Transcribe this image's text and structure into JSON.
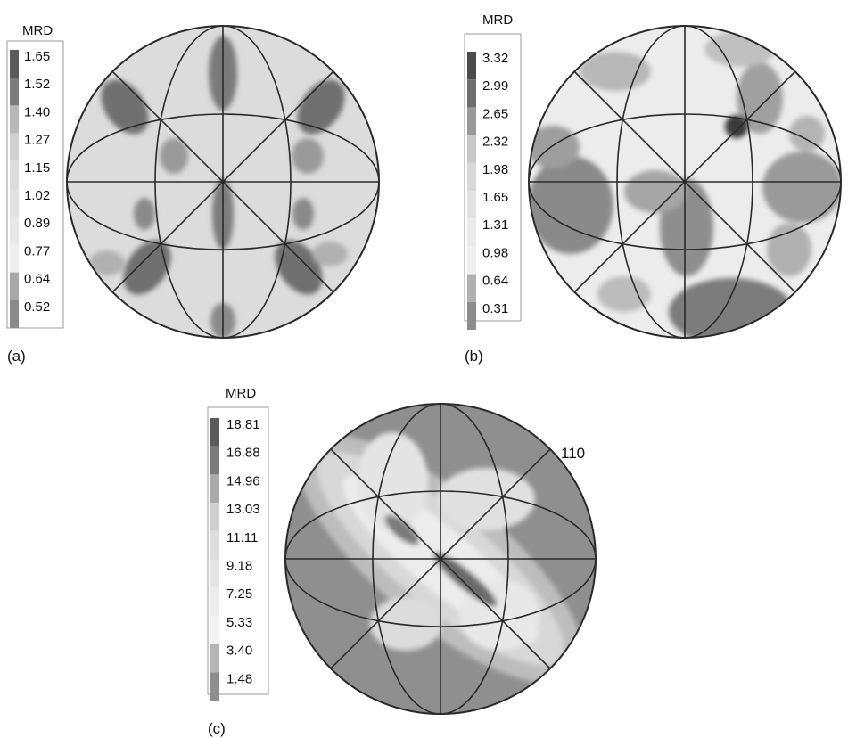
{
  "panels": [
    {
      "id": "a",
      "label": "(a)",
      "legend_title": "MRD",
      "legend_values": [
        "1.65",
        "1.52",
        "1.40",
        "1.27",
        "1.15",
        "1.02",
        "0.89",
        "0.77",
        "0.64",
        "0.52"
      ],
      "legend_colors": [
        "#5a5a5a",
        "#7c7c7c",
        "#b8b8b8",
        "#d0d0d0",
        "#dcdcdc",
        "#e2e2e2",
        "#e8e8e8",
        "#eeeeee",
        "#a8a8a8",
        "#8a8a8a"
      ],
      "background_color": "#dcdcdc",
      "pole_label": ""
    },
    {
      "id": "b",
      "label": "(b)",
      "legend_title": "MRD",
      "legend_values": [
        "3.32",
        "2.99",
        "2.65",
        "2.32",
        "1.98",
        "1.65",
        "1.31",
        "0.98",
        "0.64",
        "0.31"
      ],
      "legend_colors": [
        "#4a4a4a",
        "#6e6e6e",
        "#9a9a9a",
        "#c8c8c8",
        "#d8d8d8",
        "#e2e2e2",
        "#eaeaea",
        "#f0f0f0",
        "#b0b0b0",
        "#8c8c8c"
      ],
      "background_color": "#ececec",
      "pole_label": ""
    },
    {
      "id": "c",
      "label": "(c)",
      "legend_title": "MRD",
      "legend_values": [
        "18.81",
        "16.88",
        "14.96",
        "13.03",
        "11.11",
        "9.18",
        "7.25",
        "5.33",
        "3.40",
        "1.48"
      ],
      "legend_colors": [
        "#5a5a5a",
        "#7a7a7a",
        "#aaaaaa",
        "#cfcfcf",
        "#dcdcdc",
        "#e4e4e4",
        "#ececec",
        "#f2f2f2",
        "#b4b4b4",
        "#8e8e8e"
      ],
      "background_color": "#8f8f8f",
      "pole_label": "110"
    }
  ]
}
